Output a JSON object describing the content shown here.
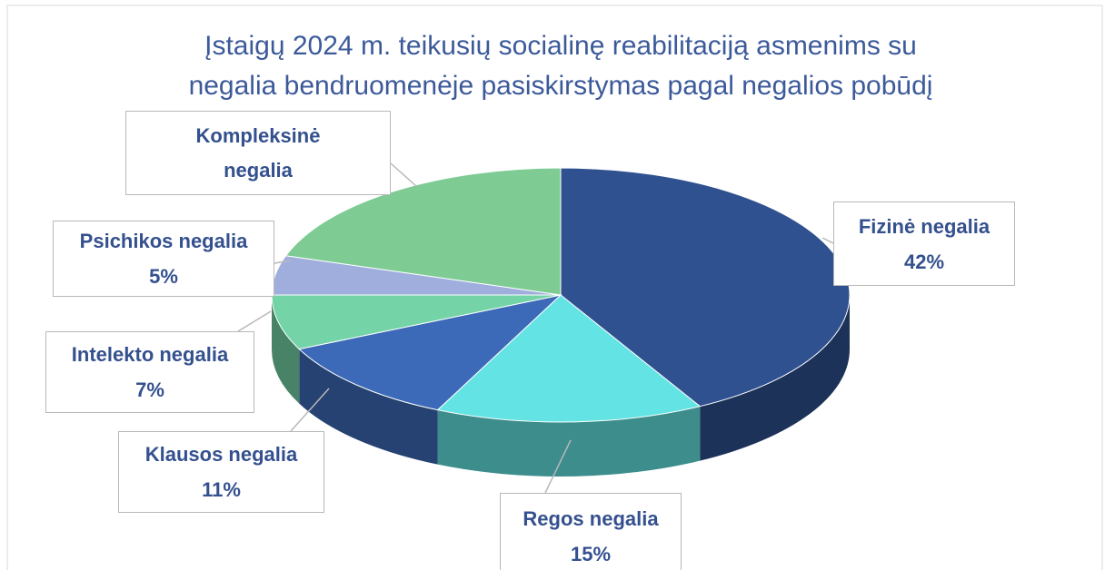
{
  "chart_data": {
    "type": "pie3d",
    "title": [
      "Įstaigų 2024 m. teikusių socialinę reabilitaciją asmenims su",
      "negalia bendruomenėje pasiskirstymas pagal negalios pobūdį"
    ],
    "categories": [
      "Fizinė negalia",
      "Regos negalia",
      "Klausos negalia",
      "Intelekto negalia",
      "Psichikos negalia",
      "Kompleksinė negalia"
    ],
    "values": [
      42,
      15,
      11,
      7,
      5,
      20
    ],
    "value_labels": [
      "42%",
      "15%",
      "11%",
      "7%",
      "5%",
      null
    ],
    "colors": [
      "#2f5190",
      "#63e3e3",
      "#3d6ab8",
      "#74d4a8",
      "#9faedc",
      "#7ecb94"
    ]
  }
}
